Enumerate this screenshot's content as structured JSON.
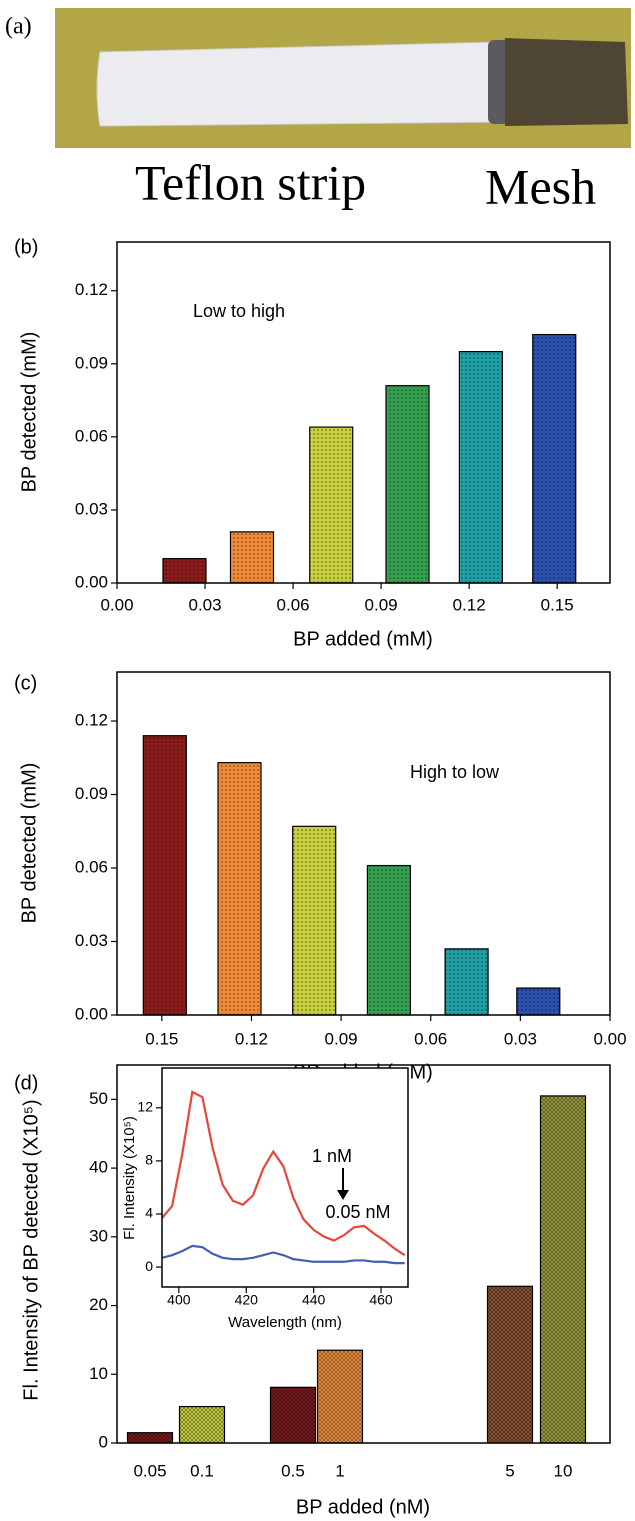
{
  "photo": {
    "panel_label": "(a)",
    "strip_label": "Teflon strip",
    "mesh_label": "Mesh"
  },
  "chart_data": [
    {
      "type": "bar",
      "panel_label": "(b)",
      "note": "Low to high",
      "xlabel": "BP added (mM)",
      "ylabel": "BP detected (mM)",
      "x": [
        0.023,
        0.046,
        0.073,
        0.099,
        0.124,
        0.149
      ],
      "values": [
        0.01,
        0.021,
        0.064,
        0.081,
        0.095,
        0.102
      ],
      "colors": [
        "#8b1c1c",
        "#f08a35",
        "#c9d040",
        "#35a050",
        "#1fa0a5",
        "#2a50b0"
      ],
      "texture": "dots",
      "xlim": [
        0,
        0.168
      ],
      "xticks": [
        {
          "value": 0,
          "label": "0.00"
        },
        0.03,
        0.06,
        0.09,
        0.12,
        0.15
      ],
      "ylim": [
        0,
        0.14
      ],
      "yticks": [
        {
          "value": 0,
          "label": "0.00"
        },
        0.03,
        0.06,
        0.09,
        0.12
      ]
    },
    {
      "type": "bar",
      "panel_label": "(c)",
      "note": "High to low",
      "xlabel": "BP added (mM)",
      "ylabel": "BP detected (mM)",
      "x": [
        0.149,
        0.124,
        0.099,
        0.074,
        0.048,
        0.024
      ],
      "values": [
        0.114,
        0.103,
        0.077,
        0.061,
        0.027,
        0.011
      ],
      "colors": [
        "#8b1c1c",
        "#f08a35",
        "#c9d040",
        "#35a050",
        "#1fa0a5",
        "#2a50b0"
      ],
      "texture": "dots",
      "xlim": [
        0.165,
        0
      ],
      "xticks": [
        0.15,
        0.12,
        0.09,
        0.06,
        0.03,
        {
          "value": 0,
          "label": "0.00"
        }
      ],
      "ylim": [
        0,
        0.14
      ],
      "yticks": [
        {
          "value": 0,
          "label": "0.00"
        },
        0.03,
        0.06,
        0.09,
        0.12
      ]
    },
    {
      "type": "bar",
      "panel_label": "(d)",
      "xlabel": "BP added (nM)",
      "ylabel": "Fl. Intensity of BP detected (X10⁵)",
      "categories": [
        "0.05",
        "0.1",
        "0.5",
        "1",
        "5",
        "10"
      ],
      "values": [
        1.5,
        5.3,
        8.1,
        13.5,
        22.8,
        50.5
      ],
      "colors": [
        "#7a1c1c",
        "#c6d040",
        "#7a1c1c",
        "#f0903f",
        "#8a5232",
        "#9c9c40"
      ],
      "texture": "crosshatch",
      "ylim": [
        0,
        55
      ],
      "yticks": [
        0,
        10,
        20,
        30,
        40,
        50
      ]
    },
    {
      "type": "line",
      "xlabel": "Wavelength (nm)",
      "ylabel": "Fl. Intensity (X10⁵)",
      "annotations": [
        "1 nM",
        "0.05 nM"
      ],
      "x": [
        395,
        398,
        401,
        404,
        407,
        410,
        413,
        416,
        419,
        422,
        425,
        428,
        431,
        434,
        437,
        440,
        443,
        446,
        449,
        452,
        455,
        458,
        461,
        464,
        467
      ],
      "series": [
        {
          "color": "#e8453c",
          "values": [
            3.7,
            4.6,
            8.5,
            13.2,
            12.8,
            9,
            6.2,
            5,
            4.7,
            5.4,
            7.4,
            8.7,
            7.6,
            5.2,
            3.6,
            2.8,
            2.3,
            2.0,
            2.4,
            3.0,
            3.1,
            2.5,
            2.0,
            1.4,
            0.9
          ]
        },
        {
          "color": "#4060b0",
          "values": [
            0.7,
            0.9,
            1.2,
            1.6,
            1.5,
            1.0,
            0.7,
            0.6,
            0.6,
            0.7,
            0.9,
            1.1,
            0.9,
            0.6,
            0.5,
            0.4,
            0.4,
            0.4,
            0.4,
            0.5,
            0.5,
            0.4,
            0.4,
            0.3,
            0.3
          ]
        }
      ],
      "xlim": [
        395,
        468
      ],
      "xticks": [
        400,
        420,
        440,
        460
      ],
      "ylim": [
        -1.5,
        15
      ],
      "yticks": [
        0,
        4,
        8,
        12
      ]
    }
  ]
}
